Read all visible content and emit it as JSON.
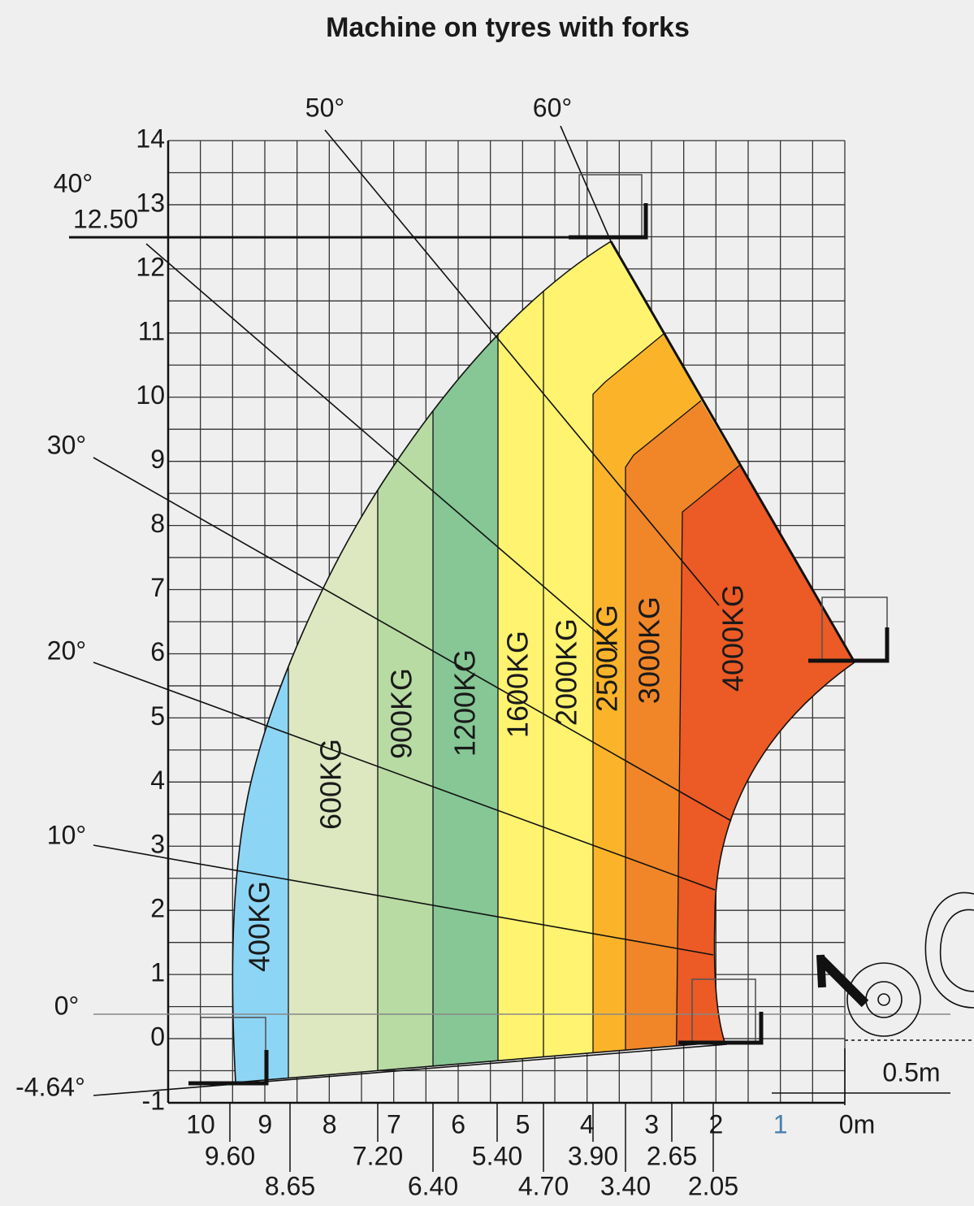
{
  "title": "Machine on tyres with forks",
  "y_labels": [
    "14",
    "13",
    "12",
    "11",
    "10",
    "9",
    "8",
    "7",
    "6",
    "5",
    "4",
    "3",
    "2",
    "1",
    "0",
    "-1"
  ],
  "height_label": "12.50",
  "x_labels": [
    "10",
    "9",
    "8",
    "7",
    "6",
    "5",
    "4",
    "3",
    "2",
    "1",
    "0m"
  ],
  "x_labels_row2": [
    "9.60",
    "7.20",
    "5.40",
    "3.90",
    "2.65"
  ],
  "x_labels_row3": [
    "8.65",
    "6.40",
    "4.70",
    "3.40",
    "2.05"
  ],
  "angles": [
    "50°",
    "60°",
    "40°",
    "30°",
    "20°",
    "10°",
    "0°",
    "-4.64°"
  ],
  "loads": [
    "400KG",
    "600KG",
    "900KG",
    "1200KG",
    "1600KG",
    "2000KG",
    "2500KG",
    "3000KG",
    "4000KG"
  ],
  "scale_label": "0.5m"
}
